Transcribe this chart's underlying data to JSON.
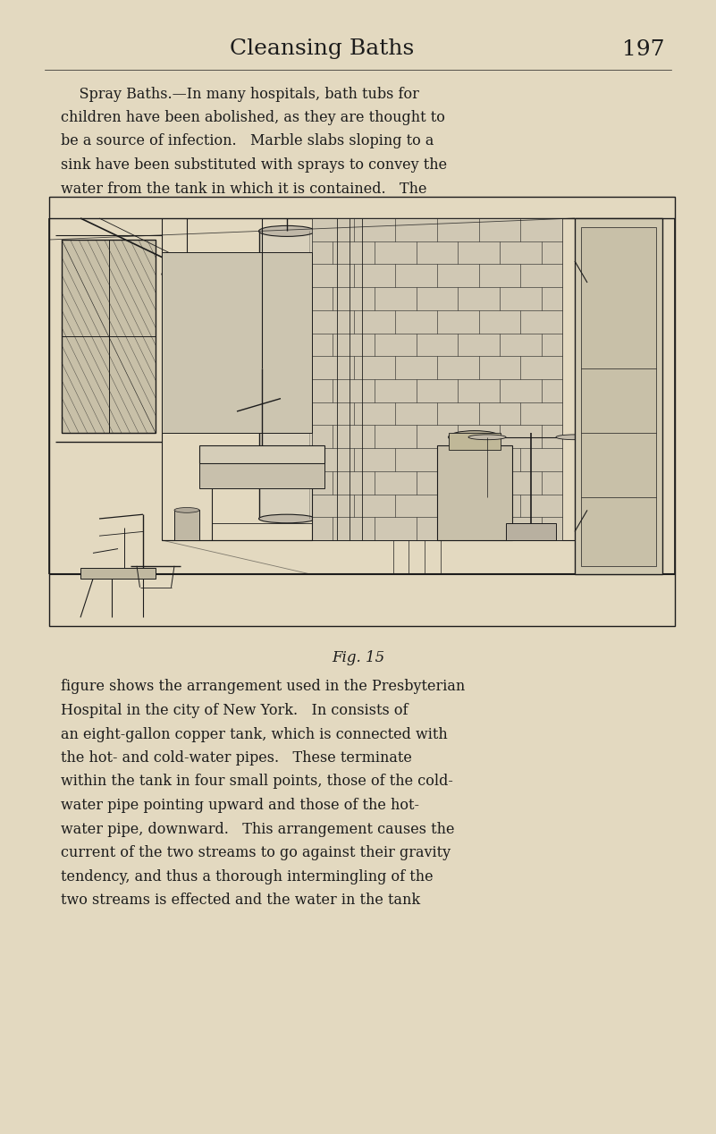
{
  "bg_color": "#e3d9c0",
  "page_width": 8.01,
  "page_height": 12.68,
  "dpi": 100,
  "header_title": "Cleansing Baths",
  "header_page": "197",
  "text_color": "#1c1c1c",
  "para1_text": [
    "    Spray Baths.—In many hospitals, bath tubs for",
    "children have been abolished, as they are thought to",
    "be a source of infection.   Marble slabs sloping to a",
    "sink have been substituted with sprays to convey the",
    "water from the tank in which it is contained.   The"
  ],
  "para2_text": [
    "figure shows the arrangement used in the Presbyterian",
    "Hospital in the city of New York.   In consists of",
    "an eight-gallon copper tank, which is connected with",
    "the hot- and cold-water pipes.   These terminate",
    "within the tank in four small points, those of the cold-",
    "water pipe pointing upward and those of the hot-",
    "water pipe, downward.   This arrangement causes the",
    "current of the two streams to go against their gravity",
    "tendency, and thus a thorough intermingling of the",
    "two streams is effected and the water in the tank"
  ],
  "fig_caption": "Fig. 15"
}
